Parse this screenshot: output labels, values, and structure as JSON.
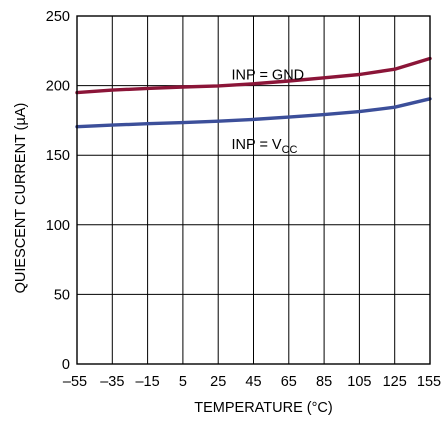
{
  "chart_data": {
    "type": "line",
    "title": "",
    "xlabel": "TEMPERATURE (°C)",
    "ylabel": "QUIESCENT CURRENT (µA)",
    "xlim": [
      -55,
      155
    ],
    "ylim": [
      0,
      250
    ],
    "x_ticks": [
      -55,
      -35,
      -15,
      5,
      25,
      45,
      65,
      85,
      105,
      125,
      155
    ],
    "x_tick_labels": [
      "–55",
      "–35",
      "–15",
      "5",
      "25",
      "45",
      "65",
      "85",
      "105",
      "125",
      "155"
    ],
    "y_ticks": [
      0,
      50,
      100,
      150,
      200,
      250
    ],
    "y_tick_labels": [
      "0",
      "50",
      "100",
      "150",
      "200",
      "250"
    ],
    "grid": true,
    "series": [
      {
        "name": "INP = GND",
        "label_main": "INP = GND",
        "label_sub": "",
        "color": "#8b1538",
        "x": [
          -55,
          -35,
          -15,
          5,
          25,
          45,
          65,
          85,
          105,
          125,
          155
        ],
        "y": [
          195,
          196.8,
          198,
          199,
          199.8,
          201.3,
          203.3,
          205.6,
          208,
          211.8,
          219.5
        ]
      },
      {
        "name": "INP = VCC",
        "label_main": "INP = V",
        "label_sub": "CC",
        "color": "#3c4f9a",
        "x": [
          -55,
          -35,
          -15,
          5,
          25,
          45,
          65,
          85,
          105,
          125,
          155
        ],
        "y": [
          170.5,
          171.6,
          172.6,
          173.4,
          174.4,
          175.7,
          177.4,
          179.2,
          181.3,
          184.5,
          190.5
        ]
      }
    ]
  }
}
